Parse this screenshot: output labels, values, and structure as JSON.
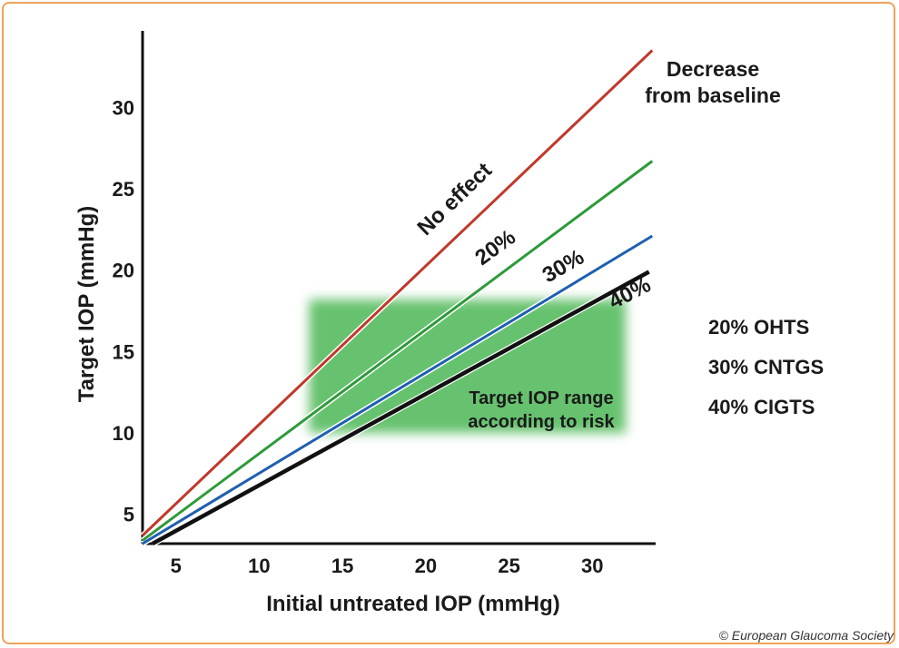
{
  "chart_data": {
    "type": "line",
    "xlabel": "Initial untreated IOP (mmHg)",
    "ylabel": "Target IOP (mmHg)",
    "x_ticks": [
      5,
      10,
      15,
      20,
      25,
      30
    ],
    "y_ticks": [
      5,
      10,
      15,
      20,
      25,
      30
    ],
    "xlim": [
      3.0,
      33.8
    ],
    "ylim": [
      3.2,
      34.7
    ],
    "series": [
      {
        "name": "No effect",
        "color": "#c0392b",
        "points": [
          [
            3.0,
            3.7
          ],
          [
            33.6,
            33.5
          ]
        ]
      },
      {
        "name": "20%",
        "color": "#2e9a3a",
        "points": [
          [
            3.0,
            3.4
          ],
          [
            33.6,
            26.7
          ]
        ]
      },
      {
        "name": "30%",
        "color": "#1f5fb0",
        "points": [
          [
            3.0,
            3.2
          ],
          [
            33.6,
            22.1
          ]
        ]
      },
      {
        "name": "40%",
        "color": "#111111",
        "points": [
          [
            3.6,
            3.2
          ],
          [
            33.4,
            19.9
          ]
        ]
      }
    ],
    "shaded_region": {
      "label_line1": "Target IOP range",
      "label_line2": "according to risk",
      "x_range": [
        13.0,
        32.0
      ],
      "y_range": [
        10.0,
        18.2
      ],
      "color": "#66c26e"
    },
    "legend_title_line1": "Decrease",
    "legend_title_line2": "from baseline"
  },
  "studies": [
    {
      "text": "20% OHTS"
    },
    {
      "text": "30% CNTGS"
    },
    {
      "text": "40% CIGTS"
    }
  ],
  "copyright": "© European Glaucoma Society"
}
